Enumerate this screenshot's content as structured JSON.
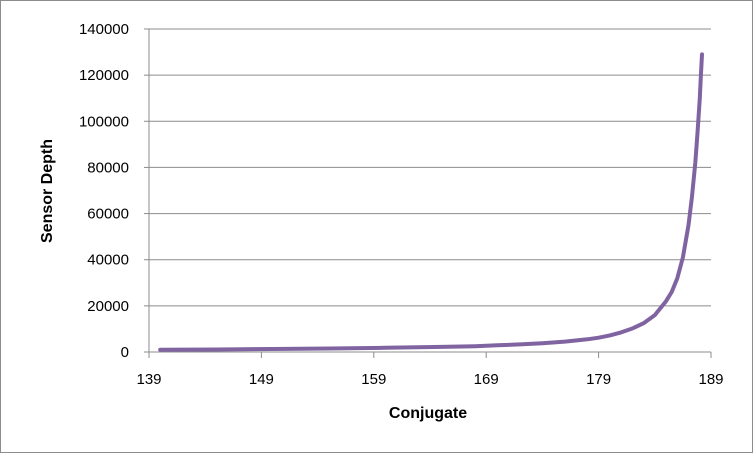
{
  "chart_data": {
    "type": "line",
    "title": "",
    "xlabel": "Conjugate",
    "ylabel": "Sensor Depth",
    "xlim": [
      139,
      189
    ],
    "ylim": [
      0,
      140000
    ],
    "x_ticks": [
      "139",
      "149",
      "159",
      "169",
      "179",
      "189"
    ],
    "y_ticks": [
      "0",
      "20000",
      "40000",
      "60000",
      "80000",
      "100000",
      "120000",
      "140000"
    ],
    "grid": {
      "horizontal": true,
      "vertical": false
    },
    "legend": "none",
    "series": [
      {
        "color": "#8064a2",
        "x": [
          140,
          145,
          150,
          155,
          160,
          165,
          168,
          170,
          172,
          174,
          176,
          178,
          179,
          180,
          181,
          182,
          183,
          184,
          185,
          185.5,
          186,
          186.5,
          187,
          187.3,
          187.6,
          187.8,
          188,
          188.1,
          188.2
        ],
        "y": [
          1000,
          1100,
          1300,
          1500,
          1800,
          2200,
          2500,
          2900,
          3300,
          3800,
          4500,
          5500,
          6200,
          7200,
          8500,
          10200,
          12500,
          16000,
          22000,
          26000,
          32000,
          41000,
          55000,
          67000,
          82000,
          95000,
          110000,
          120000,
          129000
        ]
      }
    ]
  }
}
